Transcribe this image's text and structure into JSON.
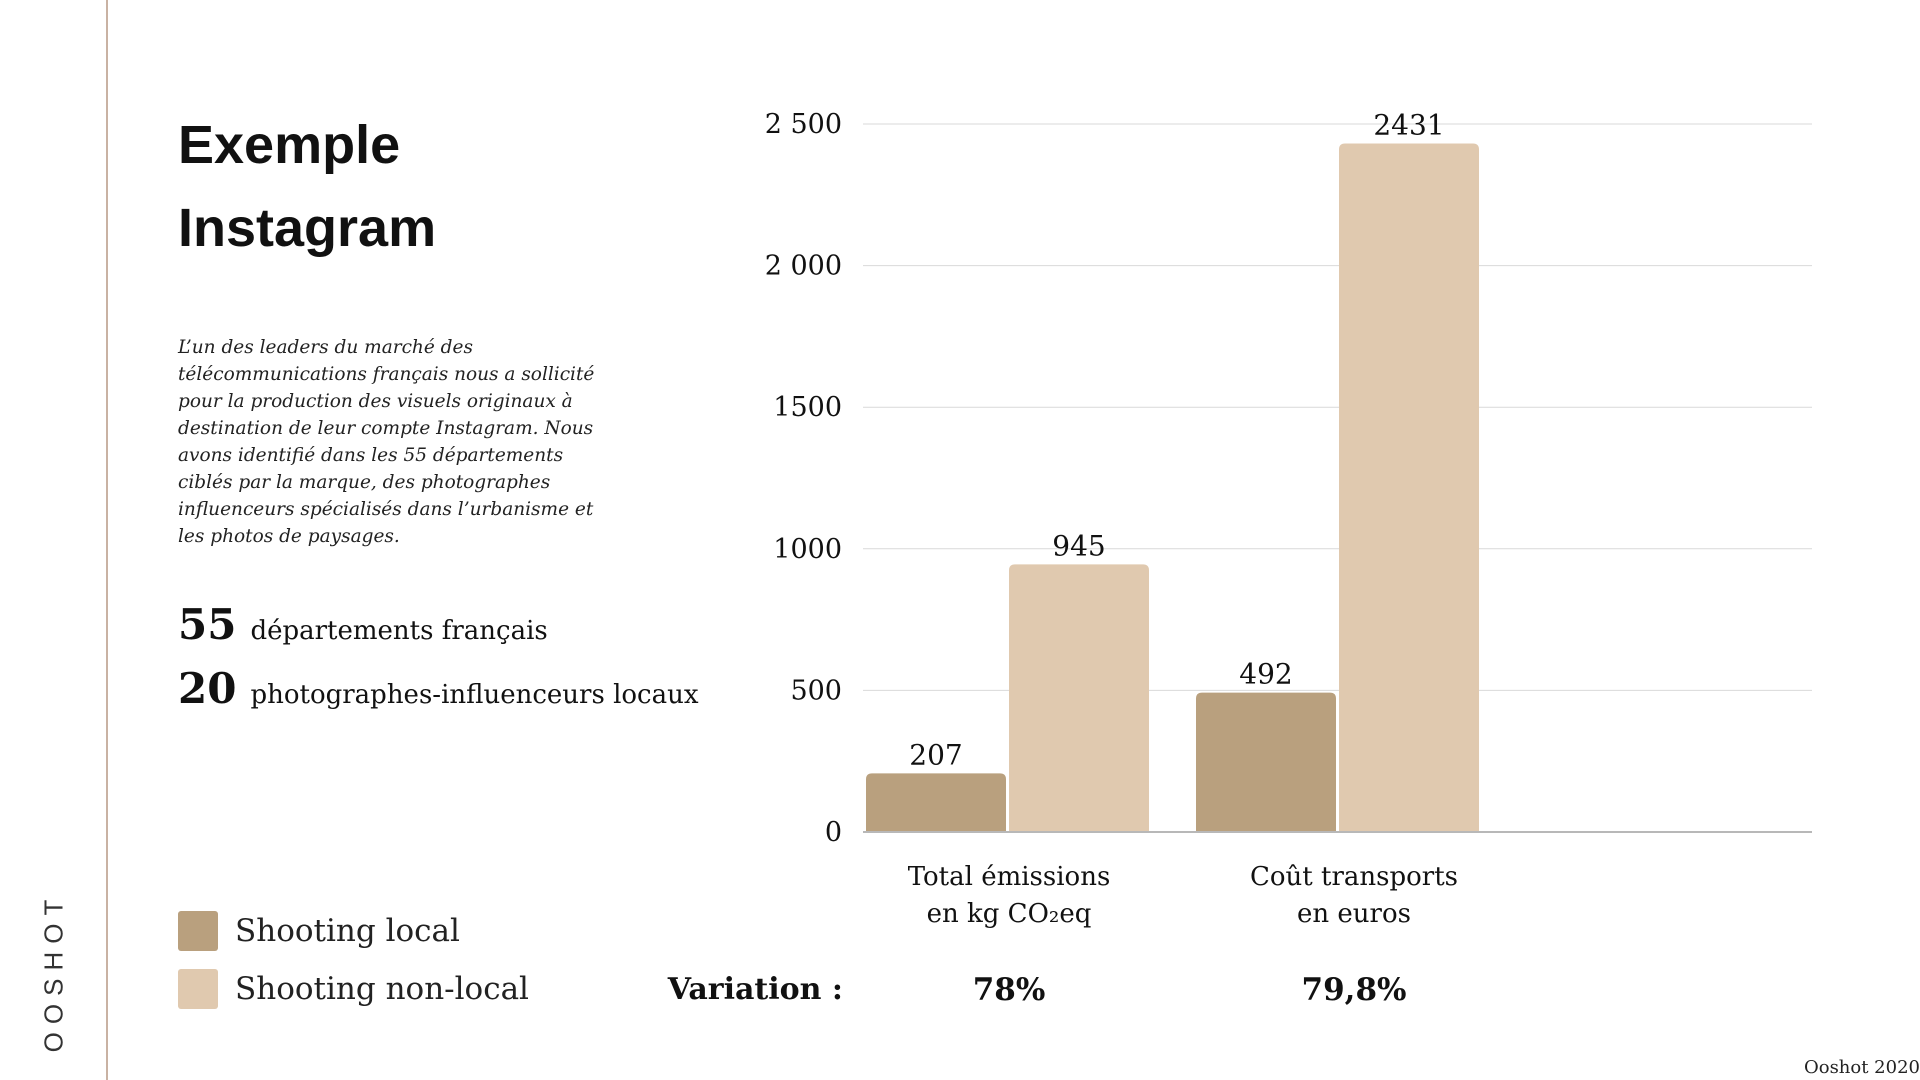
{
  "brand": "OOSHOT",
  "title_lines": [
    "Exemple",
    "Instagram"
  ],
  "description": "L’un des leaders du marché des télécommunications français nous a sollicité pour la production des visuels originaux à destination de leur compte Instagram. Nous avons identifié dans les 55 départements ciblés par la marque, des photographes influenceurs spécialisés dans l’urbanisme et les photos de paysages.",
  "stats": [
    {
      "number": "55",
      "label": "départements français"
    },
    {
      "number": "20",
      "label": "photographes-influenceurs locaux"
    }
  ],
  "legend": [
    {
      "label": "Shooting local",
      "color": "#b9a07e"
    },
    {
      "label": "Shooting non-local",
      "color": "#e0c9af"
    }
  ],
  "variation": {
    "label": "Variation :",
    "values": [
      "78%",
      "79,8%"
    ]
  },
  "footer": "Ooshot 2020",
  "chart_data": {
    "type": "bar",
    "categories": [
      [
        "Total émissions",
        "en kg CO₂eq"
      ],
      [
        "Coût transports",
        "en euros"
      ]
    ],
    "series": [
      {
        "name": "Shooting local",
        "values": [
          207,
          492
        ],
        "color": "#b9a07e"
      },
      {
        "name": "Shooting non-local",
        "values": [
          945,
          2431
        ],
        "color": "#e0c9af"
      }
    ],
    "y_ticks": [
      0,
      500,
      1000,
      1500,
      2000,
      2500
    ],
    "y_tick_labels": [
      "0",
      "500",
      "1000",
      "1500",
      "2 000",
      "2 500"
    ],
    "ylim": [
      0,
      2500
    ],
    "grid": true,
    "legend_position": "bottom-left"
  }
}
